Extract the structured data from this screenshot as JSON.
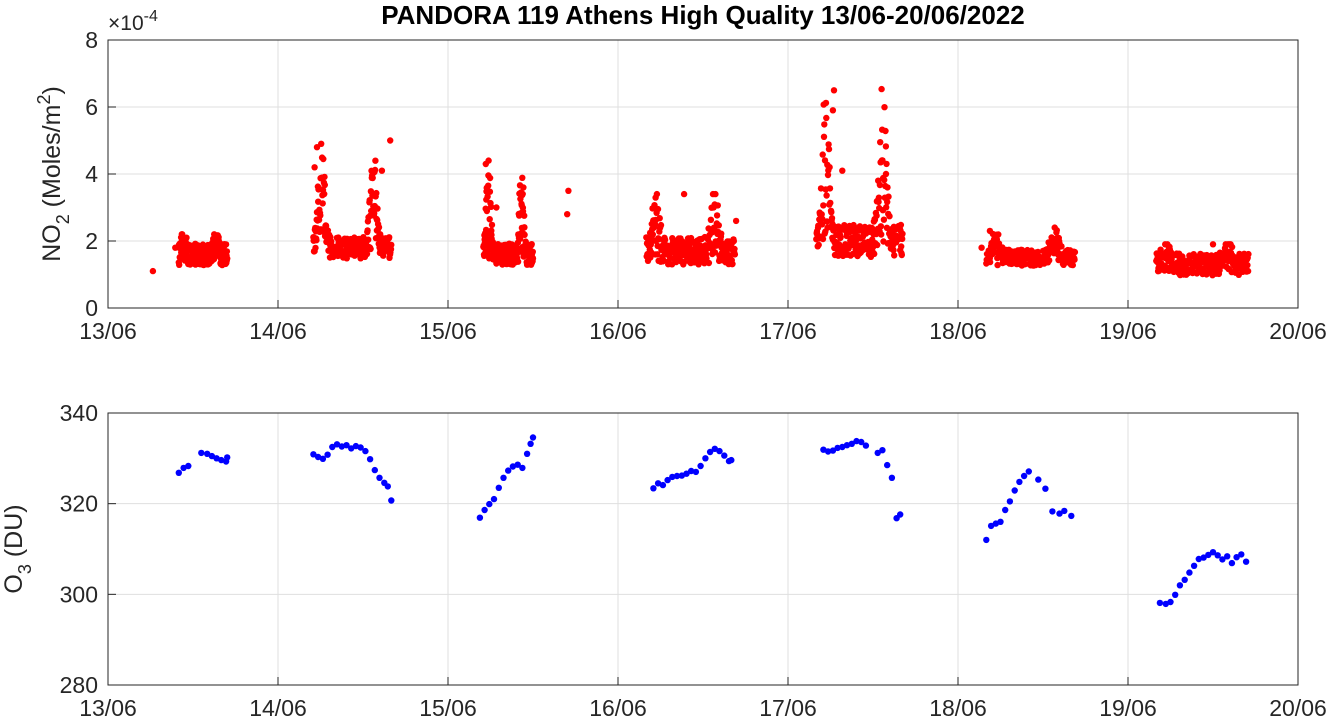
{
  "title": "PANDORA 119 Athens High Quality 13/06-20/06/2022",
  "chart_data": [
    {
      "type": "scatter",
      "ylabel": {
        "main": "NO",
        "sub": "2",
        "rest": " (Moles/m",
        "sup": "2",
        "close": ")"
      },
      "exponent": {
        "base": "×10",
        "power": "-4"
      },
      "xlim": [
        "13/06",
        "20/06"
      ],
      "ylim": [
        0,
        8
      ],
      "yticks": [
        "0",
        "2",
        "4",
        "6",
        "8"
      ],
      "xticks": [
        "13/06",
        "14/06",
        "15/06",
        "16/06",
        "17/06",
        "18/06",
        "19/06",
        "20/06"
      ],
      "grid": true,
      "color": "#ff0000",
      "value_scale": "x1e-4 Moles/m2",
      "bands": [
        {
          "from": "13/06 10:00",
          "to": "13/06 16:50",
          "lo": 1.2,
          "hi": 2.2,
          "base": 1.6
        },
        {
          "from": "14/06 05:00",
          "to": "14/06 16:00",
          "lo": 1.4,
          "hi": 4.9,
          "base": 1.8
        },
        {
          "from": "15/06 05:00",
          "to": "15/06 12:00",
          "lo": 1.2,
          "hi": 4.4,
          "base": 1.6
        },
        {
          "from": "16/06 04:00",
          "to": "16/06 16:30",
          "lo": 1.2,
          "hi": 3.4,
          "base": 1.7
        },
        {
          "from": "17/06 04:00",
          "to": "17/06 16:10",
          "lo": 1.4,
          "hi": 6.6,
          "base": 2.0
        },
        {
          "from": "18/06 04:00",
          "to": "18/06 16:30",
          "lo": 1.2,
          "hi": 2.4,
          "base": 1.5
        },
        {
          "from": "19/06 04:00",
          "to": "19/06 17:00",
          "lo": 0.9,
          "hi": 1.9,
          "base": 1.3
        }
      ],
      "points": [
        [
          "13/06 06:20",
          1.1
        ],
        [
          "13/06 09:30",
          1.8
        ],
        [
          "14/06 14:40",
          4.1
        ],
        [
          "14/06 15:50",
          5.0
        ],
        [
          "14/06 05:30",
          4.8
        ],
        [
          "14/06 05:10",
          4.2
        ],
        [
          "15/06 05:20",
          4.3
        ],
        [
          "15/06 06:50",
          3.0
        ],
        [
          "15/06 17:00",
          3.5
        ],
        [
          "15/06 16:50",
          2.8
        ],
        [
          "16/06 09:20",
          3.4
        ],
        [
          "16/06 16:40",
          2.6
        ],
        [
          "17/06 06:30",
          6.5
        ],
        [
          "17/06 06:20",
          5.9
        ],
        [
          "17/06 13:50",
          4.0
        ],
        [
          "17/06 07:40",
          4.1
        ],
        [
          "18/06 03:20",
          1.8
        ],
        [
          "18/06 04:30",
          2.3
        ],
        [
          "19/06 12:00",
          1.9
        ]
      ]
    },
    {
      "type": "scatter",
      "ylabel": {
        "main": "O",
        "sub": "3",
        "rest": " (DU)"
      },
      "xlim": [
        "13/06",
        "20/06"
      ],
      "ylim": [
        280,
        340
      ],
      "yticks": [
        "280",
        "300",
        "320",
        "340"
      ],
      "xticks": [
        "13/06",
        "14/06",
        "15/06",
        "16/06",
        "17/06",
        "18/06",
        "19/06",
        "20/06"
      ],
      "grid": true,
      "color": "#0000ff",
      "points": [
        [
          "13/06 10:00",
          326.8
        ],
        [
          "13/06 10:40",
          327.9
        ],
        [
          "13/06 11:20",
          328.3
        ],
        [
          "13/06 13:10",
          331.2
        ],
        [
          "13/06 14:00",
          331.0
        ],
        [
          "13/06 14:40",
          330.5
        ],
        [
          "13/06 15:20",
          330.0
        ],
        [
          "13/06 16:00",
          329.6
        ],
        [
          "13/06 16:40",
          329.3
        ],
        [
          "13/06 16:50",
          330.2
        ],
        [
          "14/06 05:00",
          330.9
        ],
        [
          "14/06 05:40",
          330.3
        ],
        [
          "14/06 06:20",
          329.9
        ],
        [
          "14/06 07:00",
          330.8
        ],
        [
          "14/06 07:40",
          332.5
        ],
        [
          "14/06 08:20",
          333.1
        ],
        [
          "14/06 09:00",
          332.6
        ],
        [
          "14/06 09:40",
          332.9
        ],
        [
          "14/06 10:20",
          332.2
        ],
        [
          "14/06 11:00",
          332.7
        ],
        [
          "14/06 11:40",
          332.4
        ],
        [
          "14/06 12:20",
          331.6
        ],
        [
          "14/06 13:00",
          329.8
        ],
        [
          "14/06 13:40",
          327.4
        ],
        [
          "14/06 14:20",
          325.7
        ],
        [
          "14/06 15:00",
          324.6
        ],
        [
          "14/06 15:30",
          323.8
        ],
        [
          "14/06 16:00",
          320.7
        ],
        [
          "15/06 04:30",
          316.9
        ],
        [
          "15/06 05:10",
          318.6
        ],
        [
          "15/06 05:50",
          319.9
        ],
        [
          "15/06 06:30",
          321.0
        ],
        [
          "15/06 07:10",
          323.5
        ],
        [
          "15/06 07:50",
          325.7
        ],
        [
          "15/06 08:30",
          327.3
        ],
        [
          "15/06 09:10",
          328.2
        ],
        [
          "15/06 09:50",
          328.6
        ],
        [
          "15/06 10:30",
          327.9
        ],
        [
          "15/06 11:10",
          331.0
        ],
        [
          "15/06 11:40",
          333.2
        ],
        [
          "15/06 12:00",
          334.6
        ],
        [
          "16/06 05:00",
          323.4
        ],
        [
          "16/06 05:40",
          324.5
        ],
        [
          "16/06 06:20",
          324.1
        ],
        [
          "16/06 07:00",
          325.2
        ],
        [
          "16/06 07:40",
          325.9
        ],
        [
          "16/06 08:20",
          326.1
        ],
        [
          "16/06 09:00",
          326.2
        ],
        [
          "16/06 09:40",
          326.6
        ],
        [
          "16/06 10:20",
          327.2
        ],
        [
          "16/06 11:00",
          327.0
        ],
        [
          "16/06 11:40",
          328.3
        ],
        [
          "16/06 12:20",
          330.0
        ],
        [
          "16/06 13:00",
          331.4
        ],
        [
          "16/06 13:40",
          332.1
        ],
        [
          "16/06 14:20",
          331.6
        ],
        [
          "16/06 15:00",
          330.6
        ],
        [
          "16/06 15:40",
          329.4
        ],
        [
          "16/06 16:00",
          329.6
        ],
        [
          "17/06 05:00",
          331.9
        ],
        [
          "17/06 05:40",
          331.5
        ],
        [
          "17/06 06:20",
          331.7
        ],
        [
          "17/06 07:00",
          332.3
        ],
        [
          "17/06 07:40",
          332.5
        ],
        [
          "17/06 08:20",
          332.9
        ],
        [
          "17/06 09:00",
          333.2
        ],
        [
          "17/06 09:40",
          333.8
        ],
        [
          "17/06 10:20",
          333.6
        ],
        [
          "17/06 11:00",
          332.8
        ],
        [
          "17/06 12:40",
          331.2
        ],
        [
          "17/06 13:20",
          331.8
        ],
        [
          "17/06 14:00",
          328.5
        ],
        [
          "17/06 14:40",
          325.7
        ],
        [
          "17/06 15:20",
          316.8
        ],
        [
          "17/06 15:50",
          317.6
        ],
        [
          "18/06 04:00",
          312.0
        ],
        [
          "18/06 04:40",
          315.1
        ],
        [
          "18/06 05:20",
          315.6
        ],
        [
          "18/06 06:00",
          316.0
        ],
        [
          "18/06 06:40",
          318.6
        ],
        [
          "18/06 07:20",
          320.5
        ],
        [
          "18/06 08:00",
          322.9
        ],
        [
          "18/06 08:40",
          324.8
        ],
        [
          "18/06 09:20",
          326.1
        ],
        [
          "18/06 10:00",
          327.1
        ],
        [
          "18/06 11:20",
          325.3
        ],
        [
          "18/06 12:20",
          323.3
        ],
        [
          "18/06 13:20",
          318.3
        ],
        [
          "18/06 14:20",
          317.8
        ],
        [
          "18/06 15:00",
          318.4
        ],
        [
          "18/06 16:00",
          317.3
        ],
        [
          "19/06 04:30",
          298.1
        ],
        [
          "19/06 05:20",
          297.9
        ],
        [
          "19/06 06:00",
          298.3
        ],
        [
          "19/06 06:40",
          299.9
        ],
        [
          "19/06 07:20",
          302.0
        ],
        [
          "19/06 08:00",
          303.2
        ],
        [
          "19/06 08:40",
          304.8
        ],
        [
          "19/06 09:20",
          306.3
        ],
        [
          "19/06 10:00",
          307.8
        ],
        [
          "19/06 10:40",
          308.1
        ],
        [
          "19/06 11:20",
          308.7
        ],
        [
          "19/06 12:00",
          309.3
        ],
        [
          "19/06 12:40",
          308.6
        ],
        [
          "19/06 13:20",
          307.7
        ],
        [
          "19/06 14:00",
          308.4
        ],
        [
          "19/06 14:40",
          306.9
        ],
        [
          "19/06 15:20",
          308.2
        ],
        [
          "19/06 16:00",
          308.8
        ],
        [
          "19/06 16:40",
          307.2
        ]
      ]
    }
  ]
}
